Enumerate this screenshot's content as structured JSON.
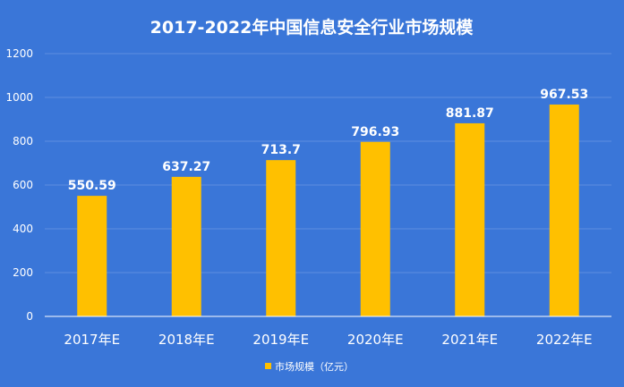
{
  "colors": {
    "background": "#3a76d8",
    "bar": "#ffc000",
    "grid": "#5f8fe0",
    "axis": "#ffffff",
    "text": "#ffffff"
  },
  "chart_data": {
    "type": "bar",
    "title": "2017-2022年中国信息安全行业市场规模",
    "categories": [
      "2017年E",
      "2018年E",
      "2019年E",
      "2020年E",
      "2021年E",
      "2022年E"
    ],
    "series": [
      {
        "name": "市场规模（亿元）",
        "values": [
          550.59,
          637.27,
          713.7,
          796.93,
          881.87,
          967.53
        ],
        "labels": [
          "550.59",
          "637.27",
          "713.7",
          "796.93",
          "881.87",
          "967.53"
        ]
      }
    ],
    "ylim": [
      0,
      1200
    ],
    "yticks": [
      "0",
      "200",
      "400",
      "600",
      "800",
      "1000",
      "1200"
    ],
    "grid": true,
    "legend": "bottom-center"
  }
}
